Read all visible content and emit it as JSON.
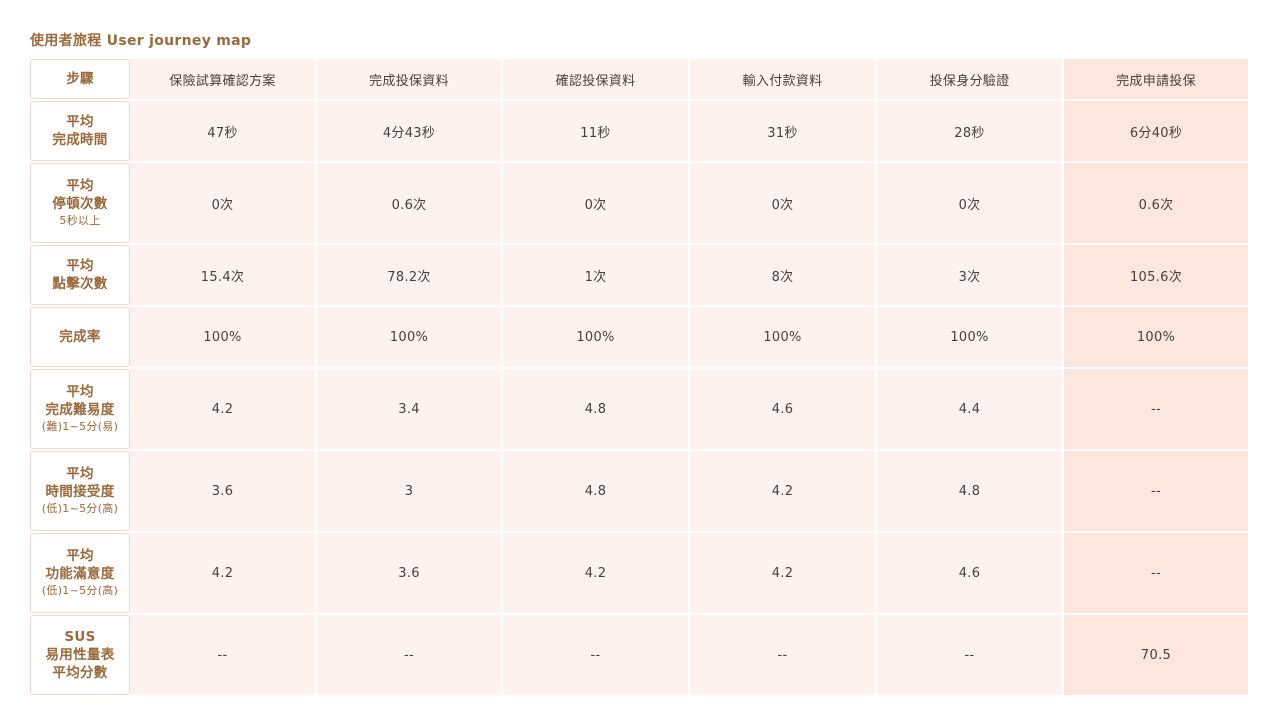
{
  "title": "使用者旅程 User journey map",
  "columns": {
    "corner": "步驟",
    "steps": [
      "保險試算確認方案",
      "完成投保資料",
      "確認投保資料",
      "輸入付款資料",
      "投保身分驗證",
      "完成申請投保"
    ]
  },
  "rows": [
    {
      "label_lines": [
        "平均",
        "完成時間"
      ],
      "sub": "",
      "values": [
        "47秒",
        "4分43秒",
        "11秒",
        "31秒",
        "28秒",
        "6分40秒"
      ]
    },
    {
      "label_lines": [
        "平均",
        "停頓次數"
      ],
      "sub": "5秒以上",
      "values": [
        "0次",
        "0.6次",
        "0次",
        "0次",
        "0次",
        "0.6次"
      ]
    },
    {
      "label_lines": [
        "平均",
        "點擊次數"
      ],
      "sub": "",
      "values": [
        "15.4次",
        "78.2次",
        "1次",
        "8次",
        "3次",
        "105.6次"
      ]
    },
    {
      "label_lines": [
        "完成率"
      ],
      "sub": "",
      "values": [
        "100%",
        "100%",
        "100%",
        "100%",
        "100%",
        "100%"
      ]
    },
    {
      "label_lines": [
        "平均",
        "完成難易度"
      ],
      "sub": "(難)1~5分(易)",
      "values": [
        "4.2",
        "3.4",
        "4.8",
        "4.6",
        "4.4",
        "--"
      ]
    },
    {
      "label_lines": [
        "平均",
        "時間接受度"
      ],
      "sub": "(低)1~5分(高)",
      "values": [
        "3.6",
        "3",
        "4.8",
        "4.2",
        "4.8",
        "--"
      ]
    },
    {
      "label_lines": [
        "平均",
        "功能滿意度"
      ],
      "sub": "(低)1~5分(高)",
      "values": [
        "4.2",
        "3.6",
        "4.2",
        "4.2",
        "4.6",
        "--"
      ]
    },
    {
      "label_lines": [
        "SUS",
        "易用性量表",
        "平均分數"
      ],
      "sub": "",
      "values": [
        "--",
        "--",
        "--",
        "--",
        "--",
        "70.5"
      ]
    }
  ],
  "colors": {
    "title": "#9a6a3c",
    "cell_bg": "#fdf2ee",
    "highlight_bg": "#fde6dd",
    "header_border": "#efd9cc"
  }
}
